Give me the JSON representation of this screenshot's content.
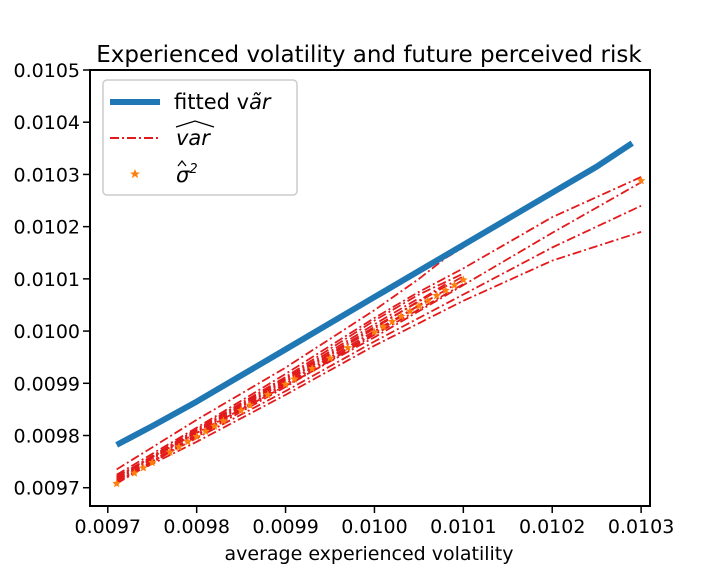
{
  "chart_data": {
    "type": "line",
    "title": "Experienced volatility and future perceived risk",
    "xlabel": "average experienced volatility",
    "ylabel": "",
    "xlim": [
      0.00968,
      0.01031
    ],
    "ylim": [
      0.009665,
      0.0105
    ],
    "xticks": [
      {
        "v": 0.0097,
        "label": "0.0097"
      },
      {
        "v": 0.0098,
        "label": "0.0098"
      },
      {
        "v": 0.0099,
        "label": "0.0099"
      },
      {
        "v": 0.01,
        "label": "0.0100"
      },
      {
        "v": 0.0101,
        "label": "0.0101"
      },
      {
        "v": 0.0102,
        "label": "0.0102"
      },
      {
        "v": 0.0103,
        "label": "0.0103"
      }
    ],
    "yticks": [
      {
        "v": 0.0097,
        "label": "0.0097"
      },
      {
        "v": 0.0098,
        "label": "0.0098"
      },
      {
        "v": 0.0099,
        "label": "0.0099"
      },
      {
        "v": 0.01,
        "label": "0.0100"
      },
      {
        "v": 0.0101,
        "label": "0.0101"
      },
      {
        "v": 0.0102,
        "label": "0.0102"
      },
      {
        "v": 0.0103,
        "label": "0.0103"
      },
      {
        "v": 0.0104,
        "label": "0.0104"
      },
      {
        "v": 0.0105,
        "label": "0.0105"
      }
    ],
    "grid": false,
    "legend_position": "top-left",
    "legend": [
      {
        "label": "fitted v",
        "tilde_label": "ãr",
        "style": "solid",
        "color": "#1f77b4"
      },
      {
        "label": "var",
        "style": "dashdot",
        "color": "#e31a1c"
      },
      {
        "label": "σ",
        "sup": "2",
        "style": "star",
        "color": "#ff7f0e"
      }
    ],
    "series": [
      {
        "name": "fitted",
        "kind": "solid",
        "color": "#1f77b4",
        "x": [
          0.00971,
          0.00975,
          0.0098,
          0.00985,
          0.0099,
          0.00995,
          0.01,
          0.01005,
          0.0101,
          0.01015,
          0.0102,
          0.01025,
          0.01029
        ],
        "y": [
          0.009782,
          0.009818,
          0.009865,
          0.009915,
          0.009965,
          0.010015,
          0.010065,
          0.010115,
          0.010165,
          0.010215,
          0.010265,
          0.010315,
          0.01036
        ]
      },
      {
        "name": "var-1",
        "kind": "dashdot",
        "color": "#e31a1c",
        "x": [
          0.00971,
          0.0098,
          0.0099,
          0.01,
          0.01005,
          0.0101,
          0.0102,
          0.0103
        ],
        "y": [
          0.009725,
          0.009815,
          0.009918,
          0.010025,
          0.010075,
          0.01012,
          0.010218,
          0.010295
        ]
      },
      {
        "name": "var-2",
        "kind": "dashdot",
        "color": "#e31a1c",
        "x": [
          0.00971,
          0.0098,
          0.0099,
          0.01,
          0.0101,
          0.0102,
          0.0103
        ],
        "y": [
          0.009722,
          0.009805,
          0.009895,
          0.009988,
          0.010088,
          0.010188,
          0.010285
        ]
      },
      {
        "name": "var-3",
        "kind": "dashdot",
        "color": "#e31a1c",
        "x": [
          0.00971,
          0.0098,
          0.0099,
          0.01,
          0.0101,
          0.0102,
          0.0103
        ],
        "y": [
          0.009715,
          0.009795,
          0.009885,
          0.00998,
          0.01007,
          0.01016,
          0.01024
        ]
      },
      {
        "name": "var-4",
        "kind": "dashdot",
        "color": "#e31a1c",
        "x": [
          0.00971,
          0.0098,
          0.0099,
          0.01,
          0.0101,
          0.0102,
          0.0103
        ],
        "y": [
          0.009712,
          0.009788,
          0.009878,
          0.009972,
          0.010058,
          0.010135,
          0.01019
        ]
      },
      {
        "name": "var-5",
        "kind": "dashdot",
        "color": "#e31a1c",
        "x": [
          0.00971,
          0.0098,
          0.0099,
          0.01,
          0.01005,
          0.01008,
          0.0101
        ],
        "y": [
          0.009735,
          0.00983,
          0.00993,
          0.01004,
          0.0101,
          0.01014,
          0.01016
        ]
      },
      {
        "name": "var-6",
        "kind": "dashdot",
        "color": "#e31a1c",
        "x": [
          0.00971,
          0.0098,
          0.0099,
          0.01,
          0.01005,
          0.0101
        ],
        "y": [
          0.00972,
          0.009812,
          0.009912,
          0.01002,
          0.01007,
          0.01011
        ]
      },
      {
        "name": "var-7",
        "kind": "dashdot",
        "color": "#e31a1c",
        "x": [
          0.00971,
          0.0098,
          0.0099,
          0.01,
          0.0101
        ],
        "y": [
          0.00971,
          0.009802,
          0.0099,
          0.01,
          0.010098
        ]
      },
      {
        "name": "var-8",
        "kind": "dashdot",
        "color": "#e31a1c",
        "x": [
          0.00971,
          0.0098,
          0.0099,
          0.01,
          0.0101
        ],
        "y": [
          0.009716,
          0.009808,
          0.009906,
          0.010008,
          0.010105
        ]
      },
      {
        "name": "var-9",
        "kind": "dashdot",
        "color": "#e31a1c",
        "x": [
          0.00971,
          0.0098,
          0.0099,
          0.01,
          0.0101
        ],
        "y": [
          0.009708,
          0.009798,
          0.009893,
          0.009993,
          0.01009
        ]
      },
      {
        "name": "var-10",
        "kind": "dashdot",
        "color": "#e31a1c",
        "x": [
          0.00971,
          0.0098,
          0.0099,
          0.01,
          0.01008
        ],
        "y": [
          0.009714,
          0.009806,
          0.009903,
          0.010005,
          0.01009
        ]
      },
      {
        "name": "var-11",
        "kind": "dashdot",
        "color": "#e31a1c",
        "x": [
          0.00971,
          0.0098,
          0.0099,
          0.01,
          0.01006
        ],
        "y": [
          0.009711,
          0.009801,
          0.009897,
          0.009996,
          0.01006
        ]
      },
      {
        "name": "var-12",
        "kind": "dashdot",
        "color": "#e31a1c",
        "x": [
          0.00971,
          0.0098,
          0.0099,
          0.01,
          0.01005
        ],
        "y": [
          0.009718,
          0.00981,
          0.009909,
          0.010013,
          0.010063
        ]
      },
      {
        "name": "sigma2",
        "kind": "star",
        "color": "#ff7f0e",
        "x": [
          0.00971,
          0.00973,
          0.00974,
          0.00975,
          0.00977,
          0.00978,
          0.00979,
          0.0098,
          0.00981,
          0.00982,
          0.00983,
          0.00985,
          0.00986,
          0.00988,
          0.0099,
          0.00991,
          0.00993,
          0.00995,
          0.00997,
          0.01,
          0.01001,
          0.01002,
          0.01003,
          0.01004,
          0.01005,
          0.01006,
          0.01007,
          0.01008,
          0.01009,
          0.0101,
          0.0103
        ],
        "y": [
          0.009708,
          0.009728,
          0.009738,
          0.009748,
          0.009768,
          0.009778,
          0.009788,
          0.009798,
          0.009808,
          0.009818,
          0.009828,
          0.009848,
          0.009858,
          0.009878,
          0.009898,
          0.009908,
          0.009928,
          0.009948,
          0.009968,
          0.009998,
          0.010008,
          0.010018,
          0.010028,
          0.010038,
          0.010048,
          0.010058,
          0.010068,
          0.010078,
          0.010088,
          0.010098,
          0.010288
        ]
      }
    ]
  }
}
